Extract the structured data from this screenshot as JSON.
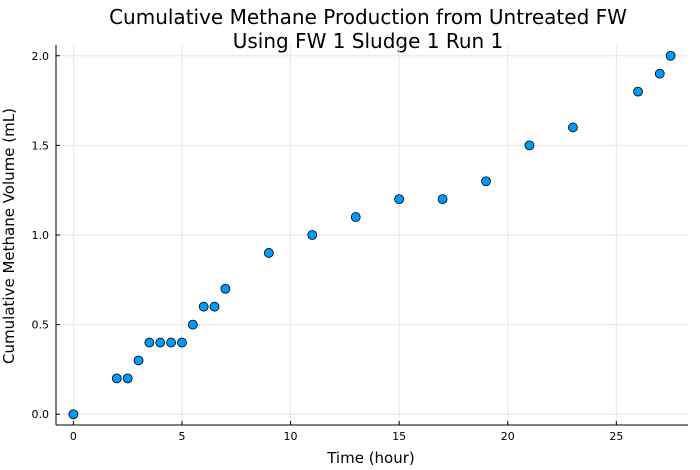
{
  "chart_data": {
    "type": "scatter",
    "title": [
      "Cumulative Methane Production from Untreated FW",
      "Using FW 1 Sludge 1 Run 1"
    ],
    "xlabel": "Time (hour)",
    "ylabel": "Cumulative Methane Volume (mL)",
    "xlim": [
      -0.8,
      28.3
    ],
    "ylim": [
      -0.06,
      2.06
    ],
    "xticks": [
      0,
      5,
      10,
      15,
      20,
      25
    ],
    "xtick_labels": [
      "0",
      "5",
      "10",
      "15",
      "20",
      "25"
    ],
    "yticks": [
      0.0,
      0.5,
      1.0,
      1.5,
      2.0
    ],
    "ytick_labels": [
      "0.0",
      "0.5",
      "1.0",
      "1.5",
      "2.0"
    ],
    "grid": true,
    "legend": "none",
    "marker_color": "#009af9",
    "series": [
      {
        "x": [
          0,
          2,
          2.5,
          3,
          3.5,
          4,
          4.5,
          5,
          5.5,
          6,
          6.5,
          7,
          9,
          11,
          13,
          15,
          17,
          19,
          21,
          23,
          26,
          27,
          27.5
        ],
        "y": [
          0.0,
          0.2,
          0.2,
          0.3,
          0.4,
          0.4,
          0.4,
          0.4,
          0.5,
          0.6,
          0.6,
          0.7,
          0.9,
          1.0,
          1.1,
          1.2,
          1.2,
          1.3,
          1.5,
          1.6,
          1.8,
          1.9,
          2.0
        ]
      }
    ]
  }
}
